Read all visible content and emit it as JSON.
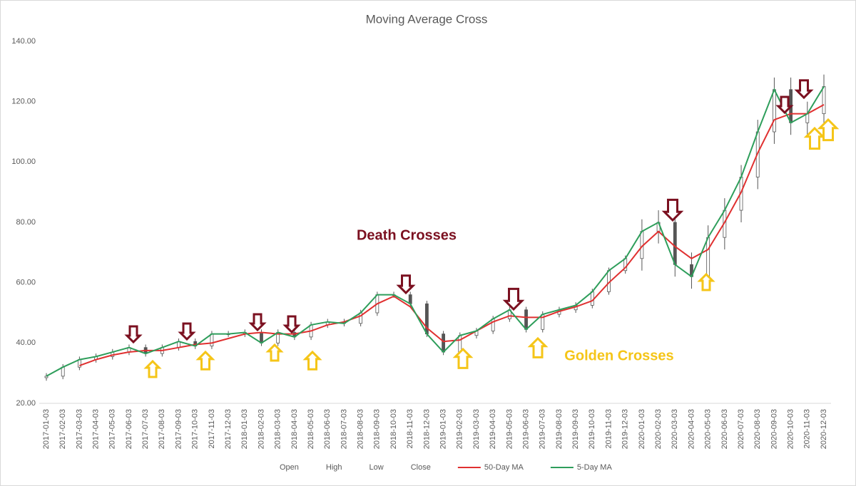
{
  "chart_data": {
    "type": "candlestick",
    "title": "Moving Average Cross",
    "x": [
      "2017-01-03",
      "2017-02-03",
      "2017-03-03",
      "2017-04-03",
      "2017-05-03",
      "2017-06-03",
      "2017-07-03",
      "2017-08-03",
      "2017-09-03",
      "2017-10-03",
      "2017-11-03",
      "2017-12-03",
      "2018-01-03",
      "2018-02-03",
      "2018-03-03",
      "2018-04-03",
      "2018-05-03",
      "2018-06-03",
      "2018-07-03",
      "2018-08-03",
      "2018-09-03",
      "2018-10-03",
      "2018-11-03",
      "2018-12-03",
      "2019-01-03",
      "2019-02-03",
      "2019-03-03",
      "2019-04-03",
      "2019-05-03",
      "2019-06-03",
      "2019-07-03",
      "2019-08-03",
      "2019-09-03",
      "2019-10-03",
      "2019-11-03",
      "2019-12-03",
      "2020-01-03",
      "2020-02-03",
      "2020-03-03",
      "2020-04-03",
      "2020-05-03",
      "2020-06-03",
      "2020-07-03",
      "2020-08-03",
      "2020-09-03",
      "2020-10-03",
      "2020-11-03",
      "2020-12-03"
    ],
    "ohlc_color": "#555555",
    "series": [
      {
        "name": "Open",
        "values": [
          28.5,
          29,
          32,
          34.5,
          35.5,
          37,
          38.5,
          36.5,
          38.5,
          40.5,
          39,
          43,
          43,
          43.5,
          40,
          43.5,
          42,
          46,
          47,
          46.5,
          50,
          56,
          56,
          53,
          43,
          37,
          42.5,
          44,
          48,
          51,
          44.5,
          49.5,
          51,
          52.5,
          57,
          64,
          68,
          77,
          80,
          66,
          62,
          75,
          84,
          95,
          110,
          124,
          113,
          116
        ]
      },
      {
        "name": "High",
        "values": [
          30,
          33,
          35.5,
          36.5,
          38,
          39.5,
          39.5,
          39.5,
          41.5,
          41.5,
          44,
          44,
          44.5,
          44.5,
          44.5,
          44.5,
          47,
          48,
          48,
          51,
          57,
          57,
          57,
          54,
          44,
          43.5,
          45,
          49,
          52,
          52,
          50.5,
          52,
          53.5,
          58,
          65,
          69,
          81,
          84,
          84,
          70,
          79,
          88,
          99,
          114,
          128,
          128,
          120,
          129
        ]
      },
      {
        "name": "Low",
        "values": [
          27.5,
          28,
          31,
          33.5,
          34.5,
          36,
          35.5,
          35.5,
          37.5,
          38,
          38,
          42,
          42,
          39,
          39,
          41,
          41,
          45,
          45.5,
          45.5,
          49,
          55,
          52,
          42,
          36,
          36,
          41.5,
          43,
          47,
          43.5,
          43.5,
          48.5,
          50,
          51.5,
          56,
          63,
          64,
          73,
          62,
          58,
          58,
          71,
          80,
          91,
          106,
          109,
          109,
          112
        ]
      },
      {
        "name": "Close",
        "values": [
          29,
          32,
          34.5,
          35.5,
          37,
          38.5,
          36.5,
          38.5,
          40.5,
          39,
          43,
          43,
          43.5,
          40,
          43.5,
          42,
          46,
          47,
          46.5,
          50,
          56,
          56,
          53,
          43,
          37,
          42.5,
          44,
          48,
          51,
          44.5,
          49.5,
          51,
          52.5,
          57,
          64,
          68,
          77,
          80,
          66,
          62,
          75,
          84,
          95,
          110,
          124,
          113,
          116,
          125
        ]
      },
      {
        "name": "50-Day MA",
        "color": "#e03030",
        "values": [
          null,
          null,
          32.5,
          34.5,
          36,
          37,
          37.5,
          37.5,
          38.5,
          39.5,
          40,
          41.5,
          43,
          43.5,
          43,
          43,
          44,
          46,
          47,
          49,
          53,
          55.5,
          52,
          45,
          40.5,
          41,
          44,
          47,
          49,
          48.5,
          48.5,
          50.5,
          52,
          54,
          60,
          65,
          72,
          77,
          72,
          68,
          71,
          80,
          90,
          103,
          114,
          116,
          116,
          119
        ]
      },
      {
        "name": "5-Day MA",
        "color": "#2e9e5b",
        "values": [
          29,
          32,
          34.5,
          35.5,
          37,
          38.5,
          36.5,
          38.5,
          40.5,
          39,
          43,
          43,
          43.5,
          40,
          43.5,
          42,
          46,
          47,
          46.5,
          50,
          56,
          56,
          53,
          43,
          37,
          42.5,
          44,
          48,
          51,
          44.5,
          49.5,
          51,
          52.5,
          57,
          64,
          68,
          77,
          80,
          66,
          62,
          75,
          84,
          95,
          110,
          124,
          113,
          116,
          125
        ]
      }
    ],
    "ylim": [
      20,
      140
    ],
    "yticks": [
      {
        "value": 20,
        "label": "20.00"
      },
      {
        "value": 40,
        "label": "40.00"
      },
      {
        "value": 60,
        "label": "60.00"
      },
      {
        "value": 80,
        "label": "80.00"
      },
      {
        "value": 100,
        "label": "100.00"
      },
      {
        "value": 120,
        "label": "120.00"
      },
      {
        "value": 140,
        "label": "140.00"
      }
    ],
    "annotations": [
      {
        "text": "Death Crosses",
        "color": "#7b1020"
      },
      {
        "text": "Golden Crosses",
        "color": "#f5c518"
      }
    ],
    "legend": "bottom"
  }
}
